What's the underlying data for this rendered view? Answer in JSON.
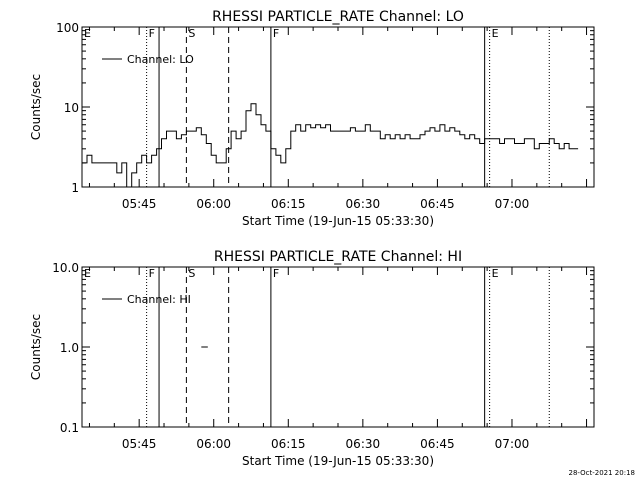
{
  "panels": [
    {
      "chart_data": {
        "type": "line",
        "title": "RHESSI PARTICLE_RATE Channel: LO",
        "xlabel": "Start Time (19-Jun-15 05:33:30)",
        "ylabel": "Counts/sec",
        "yscale": "log",
        "ylim": [
          1,
          100
        ],
        "xlim": [
          "05:33:30",
          "07:16:30"
        ],
        "yticks": [
          "1",
          "10",
          "100"
        ],
        "xticks": [
          "05:45",
          "06:00",
          "06:15",
          "06:30",
          "06:45",
          "07:00"
        ],
        "legend": {
          "label": "Channel: LO",
          "position": "top-left"
        },
        "series": [
          {
            "name": "Channel: LO",
            "x": [
              "05:33:30",
              "05:34:30",
              "05:35:30",
              "05:36:30",
              "05:37:30",
              "05:38:30",
              "05:39:30",
              "05:40:30",
              "05:41:30",
              "05:42:30",
              "05:43:30",
              "05:44:30",
              "05:45:30",
              "05:46:30",
              "05:47:30",
              "05:48:30",
              "05:49:30",
              "05:50:30",
              "05:51:30",
              "05:52:30",
              "05:53:30",
              "05:54:30",
              "05:55:30",
              "05:56:30",
              "05:57:30",
              "05:58:30",
              "05:59:30",
              "06:00:30",
              "06:01:30",
              "06:02:30",
              "06:03:30",
              "06:04:30",
              "06:05:30",
              "06:06:30",
              "06:07:30",
              "06:08:30",
              "06:09:30",
              "06:10:30",
              "06:11:30",
              "06:12:30",
              "06:13:30",
              "06:14:30",
              "06:15:30",
              "06:16:30",
              "06:17:30",
              "06:18:30",
              "06:19:30",
              "06:20:30",
              "06:21:30",
              "06:22:30",
              "06:23:30",
              "06:24:30",
              "06:25:30",
              "06:26:30",
              "06:27:30",
              "06:28:30",
              "06:29:30",
              "06:30:30",
              "06:31:30",
              "06:32:30",
              "06:33:30",
              "06:34:30",
              "06:35:30",
              "06:36:30",
              "06:37:30",
              "06:38:30",
              "06:39:30",
              "06:40:30",
              "06:41:30",
              "06:42:30",
              "06:43:30",
              "06:44:30",
              "06:45:30",
              "06:46:30",
              "06:47:30",
              "06:48:30",
              "06:49:30",
              "06:50:30",
              "06:51:30",
              "06:52:30",
              "06:53:30",
              "06:54:30",
              "06:55:30",
              "06:56:30",
              "06:57:30",
              "06:58:30",
              "06:59:30",
              "07:00:30",
              "07:01:30",
              "07:02:30",
              "07:03:30",
              "07:04:30",
              "07:05:30",
              "07:06:30",
              "07:07:30",
              "07:08:30",
              "07:09:30",
              "07:10:30",
              "07:11:30",
              "07:12:30"
            ],
            "values": [
              2,
              2.5,
              2,
              2,
              2,
              2,
              2,
              1.5,
              2,
              1,
              1.5,
              2,
              2.5,
              2,
              2.5,
              3,
              4,
              5,
              5,
              4,
              4.5,
              5,
              5,
              5.5,
              4.5,
              3.5,
              2.5,
              2,
              2,
              3,
              5,
              4,
              5,
              9,
              11,
              8,
              6,
              5,
              3,
              2.5,
              2,
              3,
              5,
              6,
              5,
              6,
              5.5,
              6,
              5.5,
              6,
              5,
              5,
              5,
              5,
              5.5,
              5,
              5,
              6,
              5,
              5,
              4,
              4.5,
              4,
              4.5,
              4,
              4.5,
              4,
              4,
              4.5,
              5,
              5.5,
              5,
              6,
              5,
              5.5,
              5,
              4.5,
              4,
              4.5,
              4,
              3.5,
              4,
              4,
              4,
              3.5,
              4,
              4,
              3.5,
              3.5,
              4,
              4,
              3,
              3.5,
              3.5,
              4,
              3.5,
              3,
              3.5,
              3,
              3
            ]
          }
        ]
      },
      "markers": [
        {
          "label": "E",
          "time": "05:33:30",
          "style": "dotted"
        },
        {
          "label": "F",
          "time": "05:46:30",
          "style": "dotted"
        },
        {
          "label": "",
          "time": "05:49:00",
          "style": "solid"
        },
        {
          "label": "S",
          "time": "05:54:30",
          "style": "dashed"
        },
        {
          "label": "",
          "time": "06:03:00",
          "style": "dashed"
        },
        {
          "label": "F",
          "time": "06:11:30",
          "style": "solid"
        },
        {
          "label": "",
          "time": "06:54:30",
          "style": "solid"
        },
        {
          "label": "E",
          "time": "06:55:30",
          "style": "dotted"
        },
        {
          "label": "",
          "time": "07:07:30",
          "style": "dotted"
        }
      ]
    },
    {
      "chart_data": {
        "type": "line",
        "title": "RHESSI PARTICLE_RATE Channel: HI",
        "xlabel": "Start Time (19-Jun-15 05:33:30)",
        "ylabel": "Counts/sec",
        "yscale": "log",
        "ylim": [
          0.1,
          10
        ],
        "xlim": [
          "05:33:30",
          "07:16:30"
        ],
        "yticks": [
          "0.1",
          "1.0",
          "10.0"
        ],
        "xticks": [
          "05:45",
          "06:00",
          "06:15",
          "06:30",
          "06:45",
          "07:00"
        ],
        "legend": {
          "label": "Channel: HI",
          "position": "top-left"
        },
        "series": [
          {
            "name": "Channel: HI",
            "x": [
              "05:57:30",
              "05:58:00"
            ],
            "values": [
              1,
              1
            ]
          }
        ]
      },
      "markers": [
        {
          "label": "E",
          "time": "05:33:30",
          "style": "dotted"
        },
        {
          "label": "F",
          "time": "05:46:30",
          "style": "dotted"
        },
        {
          "label": "",
          "time": "05:49:00",
          "style": "solid"
        },
        {
          "label": "S",
          "time": "05:54:30",
          "style": "dashed"
        },
        {
          "label": "",
          "time": "06:03:00",
          "style": "dashed"
        },
        {
          "label": "F",
          "time": "06:11:30",
          "style": "solid"
        },
        {
          "label": "",
          "time": "06:54:30",
          "style": "solid"
        },
        {
          "label": "E",
          "time": "06:55:30",
          "style": "dotted"
        },
        {
          "label": "",
          "time": "07:07:30",
          "style": "dotted"
        }
      ]
    }
  ],
  "footer": {
    "timestamp": "28-Oct-2021 20:18"
  }
}
